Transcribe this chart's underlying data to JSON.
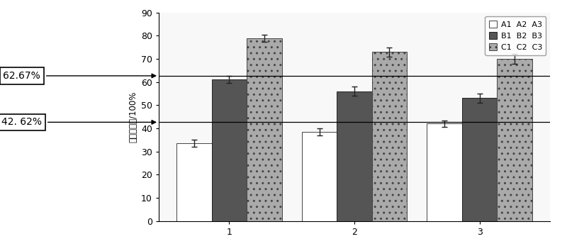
{
  "groups": [
    1,
    2,
    3
  ],
  "group_labels": [
    "1",
    "2",
    "3"
  ],
  "series": [
    {
      "name": "A1  A2  A3",
      "values": [
        33.5,
        38.5,
        42.0
      ],
      "errors": [
        1.5,
        1.5,
        1.5
      ],
      "color": "#ffffff",
      "edgecolor": "#444444",
      "hatch": ""
    },
    {
      "name": "B1  B2  B3",
      "values": [
        61.0,
        56.0,
        53.0
      ],
      "errors": [
        1.5,
        2.0,
        2.0
      ],
      "color": "#555555",
      "edgecolor": "#222222",
      "hatch": ""
    },
    {
      "name": "C1  C2  C3",
      "values": [
        79.0,
        73.0,
        70.0
      ],
      "errors": [
        1.5,
        2.0,
        2.0
      ],
      "color": "#aaaaaa",
      "edgecolor": "#444444",
      "hatch": ".."
    }
  ],
  "ylabel": "相对电导率/100%",
  "ylim": [
    0,
    90
  ],
  "yticks": [
    0,
    10,
    20,
    30,
    40,
    50,
    60,
    70,
    80,
    90
  ],
  "hlines": [
    62.67,
    42.62
  ],
  "bar_width": 0.28,
  "background_color": "#ffffff",
  "plot_bg_color": "#f5f5f5",
  "annotation_box_color": "#ffffff",
  "box1_label": "62.67%",
  "box2_label": "42.（62%",
  "legend_loc": "center right"
}
